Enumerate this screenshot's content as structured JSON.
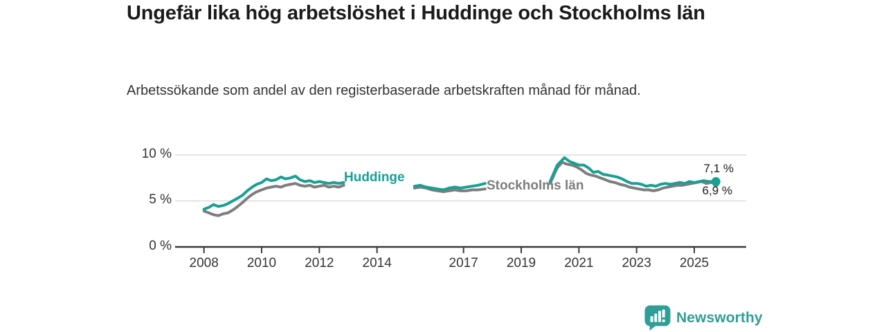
{
  "chart_data": {
    "type": "line",
    "title": "Ungefär lika hög arbetslöshet i Huddinge och Stockholms län",
    "subtitle": "Arbetssökande som andel av den registerbaserade arbetskraften månad för månad.",
    "unit": "%",
    "xlim": [
      2007.0,
      2026.8
    ],
    "ylim": [
      0,
      11.05
    ],
    "grid": "horizontal-light",
    "gridline_color": "#dcdcdc",
    "axis_color": "#3a3a3a",
    "x_ticks": [
      {
        "value": 2008,
        "label": "2008"
      },
      {
        "value": 2010,
        "label": "2010"
      },
      {
        "value": 2012,
        "label": "2012"
      },
      {
        "value": 2014,
        "label": "2014"
      },
      {
        "value": 2017,
        "label": "2017"
      },
      {
        "value": 2019,
        "label": "2019"
      },
      {
        "value": 2021,
        "label": "2021"
      },
      {
        "value": 2023,
        "label": "2023"
      },
      {
        "value": 2025,
        "label": "2025"
      }
    ],
    "y_ticks": [
      {
        "value": 0,
        "label": "0 %"
      },
      {
        "value": 5,
        "label": "5 %"
      },
      {
        "value": 10,
        "label": "10 %"
      }
    ],
    "series": [
      {
        "name": "Huddinge",
        "color": "#18a094",
        "end_label": "7,1 %",
        "end_value": 7.1,
        "segments": [
          [
            [
              2008.0,
              4.1
            ],
            [
              2008.17,
              4.3
            ],
            [
              2008.33,
              4.6
            ],
            [
              2008.5,
              4.4
            ],
            [
              2008.67,
              4.5
            ],
            [
              2008.83,
              4.7
            ],
            [
              2009.0,
              5.0
            ],
            [
              2009.17,
              5.3
            ],
            [
              2009.33,
              5.6
            ],
            [
              2009.5,
              6.1
            ],
            [
              2009.67,
              6.5
            ],
            [
              2009.83,
              6.8
            ],
            [
              2010.0,
              7.0
            ],
            [
              2010.17,
              7.4
            ],
            [
              2010.33,
              7.2
            ],
            [
              2010.5,
              7.3
            ],
            [
              2010.67,
              7.6
            ],
            [
              2010.83,
              7.4
            ],
            [
              2011.0,
              7.5
            ],
            [
              2011.17,
              7.7
            ],
            [
              2011.33,
              7.3
            ],
            [
              2011.5,
              7.1
            ],
            [
              2011.67,
              7.2
            ],
            [
              2011.83,
              7.0
            ],
            [
              2012.0,
              7.1
            ],
            [
              2012.17,
              7.0
            ],
            [
              2012.33,
              6.9
            ],
            [
              2012.5,
              7.0
            ],
            [
              2012.67,
              6.9
            ],
            [
              2012.85,
              7.0
            ]
          ],
          [
            [
              2015.3,
              6.6
            ],
            [
              2015.5,
              6.7
            ],
            [
              2015.7,
              6.5
            ],
            [
              2015.9,
              6.4
            ],
            [
              2016.1,
              6.3
            ],
            [
              2016.3,
              6.2
            ],
            [
              2016.5,
              6.4
            ],
            [
              2016.7,
              6.5
            ],
            [
              2016.9,
              6.4
            ],
            [
              2017.1,
              6.5
            ],
            [
              2017.3,
              6.6
            ],
            [
              2017.5,
              6.7
            ],
            [
              2017.75,
              6.9
            ]
          ],
          [
            [
              2020.0,
              7.1
            ],
            [
              2020.25,
              8.9
            ],
            [
              2020.5,
              9.7
            ],
            [
              2020.67,
              9.3
            ],
            [
              2020.83,
              9.1
            ],
            [
              2021.0,
              8.9
            ],
            [
              2021.17,
              8.9
            ],
            [
              2021.33,
              8.6
            ],
            [
              2021.5,
              8.1
            ],
            [
              2021.67,
              8.2
            ],
            [
              2021.83,
              7.9
            ],
            [
              2022.0,
              7.8
            ],
            [
              2022.17,
              7.7
            ],
            [
              2022.33,
              7.6
            ],
            [
              2022.5,
              7.4
            ],
            [
              2022.67,
              7.1
            ],
            [
              2022.83,
              6.9
            ],
            [
              2023.0,
              6.9
            ],
            [
              2023.17,
              6.8
            ],
            [
              2023.33,
              6.6
            ],
            [
              2023.5,
              6.7
            ],
            [
              2023.67,
              6.6
            ],
            [
              2023.83,
              6.8
            ],
            [
              2024.0,
              6.9
            ],
            [
              2024.17,
              6.8
            ],
            [
              2024.33,
              6.9
            ],
            [
              2024.5,
              7.0
            ],
            [
              2024.67,
              6.9
            ],
            [
              2024.83,
              7.1
            ],
            [
              2025.0,
              7.0
            ],
            [
              2025.17,
              7.1
            ],
            [
              2025.33,
              7.2
            ],
            [
              2025.5,
              7.1
            ],
            [
              2025.75,
              7.1
            ]
          ]
        ]
      },
      {
        "name": "Stockholms län",
        "color": "#7d7d7d",
        "end_label": "6,9 %",
        "end_value": 6.9,
        "segments": [
          [
            [
              2008.0,
              3.9
            ],
            [
              2008.17,
              3.7
            ],
            [
              2008.33,
              3.5
            ],
            [
              2008.5,
              3.4
            ],
            [
              2008.67,
              3.6
            ],
            [
              2008.83,
              3.7
            ],
            [
              2009.0,
              4.0
            ],
            [
              2009.17,
              4.4
            ],
            [
              2009.33,
              4.8
            ],
            [
              2009.5,
              5.3
            ],
            [
              2009.67,
              5.7
            ],
            [
              2009.83,
              6.0
            ],
            [
              2010.0,
              6.2
            ],
            [
              2010.17,
              6.4
            ],
            [
              2010.33,
              6.5
            ],
            [
              2010.5,
              6.6
            ],
            [
              2010.67,
              6.5
            ],
            [
              2010.83,
              6.7
            ],
            [
              2011.0,
              6.8
            ],
            [
              2011.17,
              6.9
            ],
            [
              2011.33,
              6.7
            ],
            [
              2011.5,
              6.6
            ],
            [
              2011.67,
              6.7
            ],
            [
              2011.83,
              6.5
            ],
            [
              2012.0,
              6.6
            ],
            [
              2012.17,
              6.7
            ],
            [
              2012.33,
              6.5
            ],
            [
              2012.5,
              6.6
            ],
            [
              2012.67,
              6.5
            ],
            [
              2012.85,
              6.7
            ]
          ],
          [
            [
              2015.3,
              6.4
            ],
            [
              2015.5,
              6.5
            ],
            [
              2015.7,
              6.4
            ],
            [
              2015.9,
              6.2
            ],
            [
              2016.1,
              6.1
            ],
            [
              2016.3,
              6.0
            ],
            [
              2016.5,
              6.1
            ],
            [
              2016.7,
              6.2
            ],
            [
              2016.9,
              6.1
            ],
            [
              2017.1,
              6.1
            ],
            [
              2017.3,
              6.2
            ],
            [
              2017.5,
              6.2
            ],
            [
              2017.75,
              6.3
            ]
          ],
          [
            [
              2020.0,
              6.9
            ],
            [
              2020.25,
              8.6
            ],
            [
              2020.42,
              9.2
            ],
            [
              2020.58,
              9.0
            ],
            [
              2020.75,
              8.9
            ],
            [
              2020.92,
              8.7
            ],
            [
              2021.08,
              8.4
            ],
            [
              2021.25,
              8.0
            ],
            [
              2021.42,
              7.8
            ],
            [
              2021.58,
              7.7
            ],
            [
              2021.75,
              7.5
            ],
            [
              2021.92,
              7.3
            ],
            [
              2022.08,
              7.1
            ],
            [
              2022.25,
              7.0
            ],
            [
              2022.42,
              6.8
            ],
            [
              2022.58,
              6.7
            ],
            [
              2022.75,
              6.5
            ],
            [
              2022.92,
              6.4
            ],
            [
              2023.08,
              6.3
            ],
            [
              2023.25,
              6.2
            ],
            [
              2023.42,
              6.2
            ],
            [
              2023.58,
              6.1
            ],
            [
              2023.75,
              6.2
            ],
            [
              2023.92,
              6.4
            ],
            [
              2024.08,
              6.5
            ],
            [
              2024.25,
              6.6
            ],
            [
              2024.42,
              6.7
            ],
            [
              2024.58,
              6.7
            ],
            [
              2024.75,
              6.8
            ],
            [
              2024.92,
              6.9
            ],
            [
              2025.08,
              7.0
            ],
            [
              2025.25,
              7.1
            ],
            [
              2025.42,
              6.9
            ],
            [
              2025.58,
              7.0
            ],
            [
              2025.75,
              6.9
            ]
          ]
        ]
      }
    ]
  },
  "branding": {
    "logo_text": "Newsworthy",
    "logo_color": "#2f9e96"
  }
}
